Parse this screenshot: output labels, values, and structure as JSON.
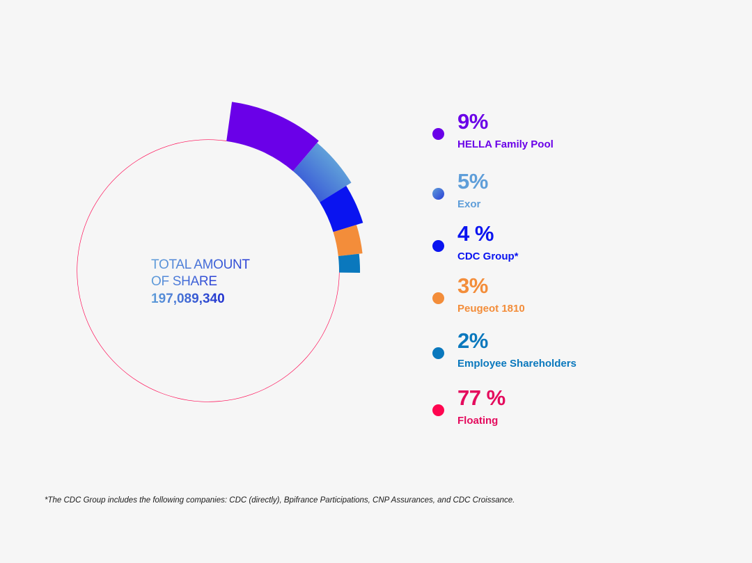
{
  "chart_data": {
    "type": "pie",
    "title": "",
    "center_label": {
      "line1": "TOTAL AMOUNT",
      "line2": "OF SHARE",
      "value": "197,089,340"
    },
    "slices": [
      {
        "label": "HELLA Family Pool",
        "value": 9,
        "display": "9%",
        "color": "#6a00e8"
      },
      {
        "label": "Exor",
        "value": 5,
        "display": "5%",
        "color": "#5f9ed9"
      },
      {
        "label": "CDC Group*",
        "value": 4,
        "display": "4 %",
        "color": "#0a14f0"
      },
      {
        "label": "Peugeot 1810",
        "value": 3,
        "display": "3%",
        "color": "#f38d3a"
      },
      {
        "label": "Employee Shareholders",
        "value": 2,
        "display": "2%",
        "color": "#0a78bd"
      },
      {
        "label": "Floating",
        "value": 77,
        "display": "77 %",
        "color": "#ff0550"
      }
    ],
    "legend_position": "right"
  },
  "legend_text_colors": [
    "#6a00e8",
    "#5f9ed9",
    "#0a14f0",
    "#f38d3a",
    "#0a78bd",
    "#e40b5d"
  ],
  "exor_gradient": [
    "#5f9ed9",
    "#2a3fd6"
  ],
  "footnote": "*The CDC Group includes the following companies: CDC (directly), Bpifrance Participations, CNP Assurances, and CDC Croissance."
}
